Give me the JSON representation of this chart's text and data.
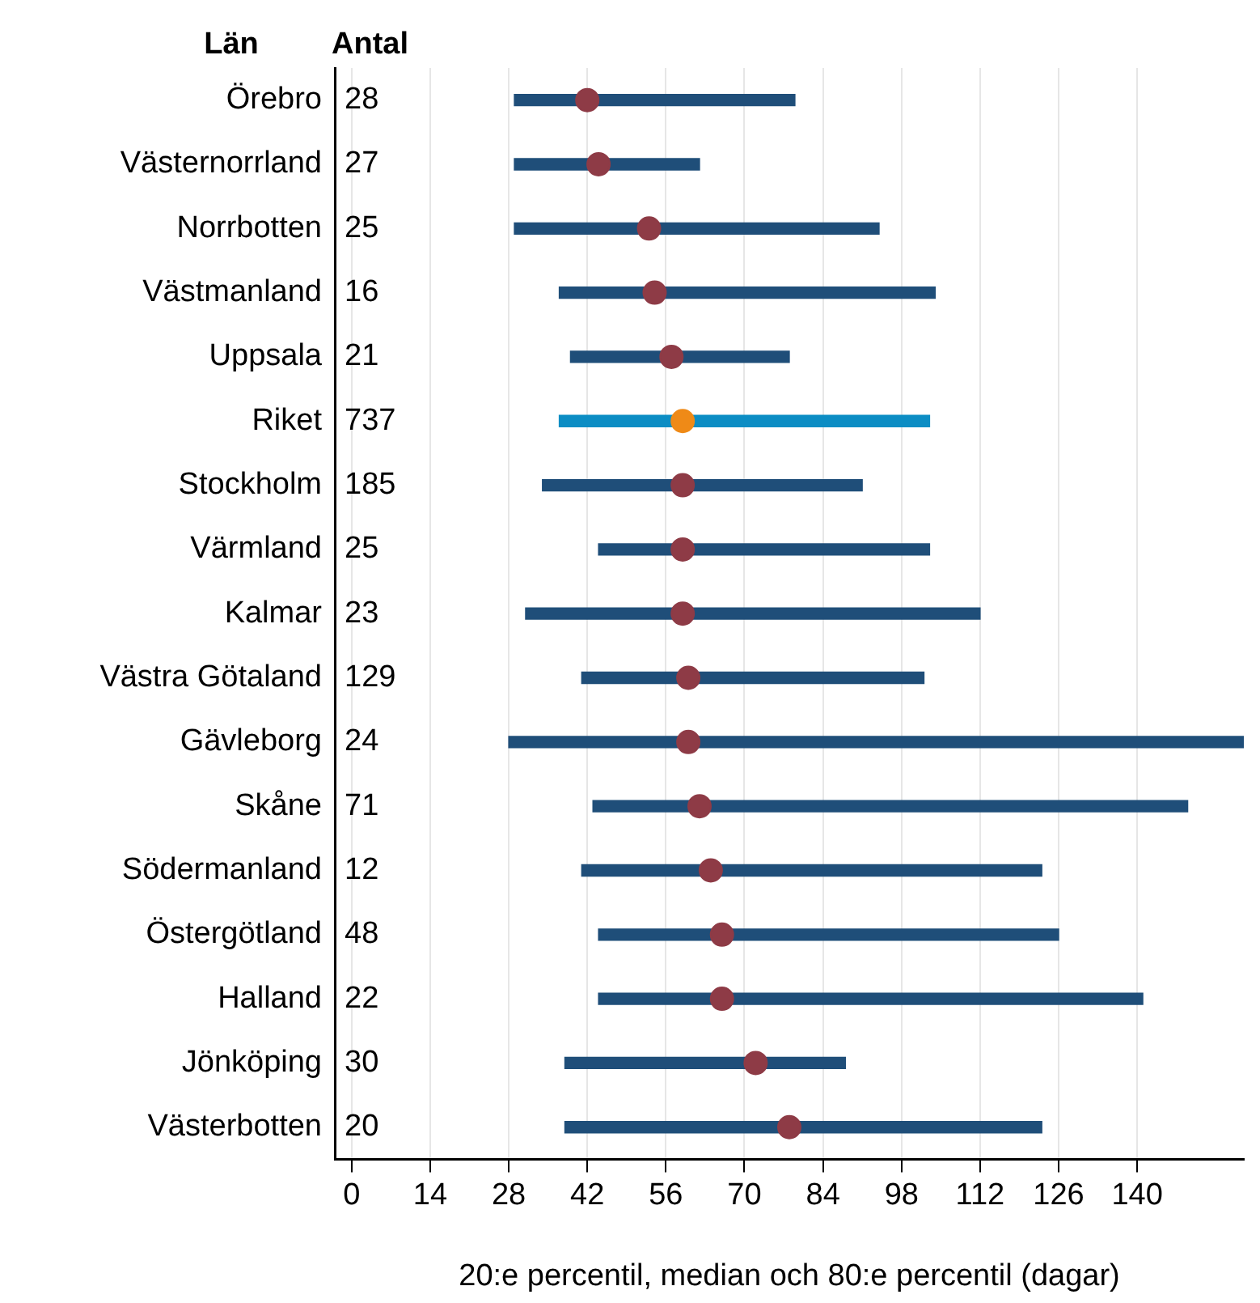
{
  "chart_data": {
    "type": "bar",
    "orientation": "horizontal",
    "ylabel": "Län",
    "xlabel": "20:e percentil, median och 80:e percentil (dagar)",
    "categories": [
      "Örebro",
      "Västernorrland",
      "Norrbotten",
      "Västmanland",
      "Uppsala",
      "Riket",
      "Stockholm",
      "Värmland",
      "Kalmar",
      "Västra Götaland",
      "Gävleborg",
      "Skåne",
      "Södermanland",
      "Östergötland",
      "Halland",
      "Jönköping",
      "Västerbotten"
    ],
    "series": [
      {
        "colors": [
          "#1f4e79",
          "#1f4e79",
          "#1f4e79",
          "#1f4e79",
          "#1f4e79",
          "#0c8dc4",
          "#1f4e79",
          "#1f4e79",
          "#1f4e79",
          "#1f4e79",
          "#1f4e79",
          "#1f4e79",
          "#1f4e79",
          "#1f4e79",
          "#1f4e79",
          "#1f4e79",
          "#1f4e79"
        ],
        "base": [
          29,
          29,
          29,
          37,
          39,
          37,
          34,
          44,
          31,
          41,
          28,
          43,
          41,
          44,
          44,
          38,
          38
        ],
        "values": [
          50,
          33,
          65,
          67,
          39,
          66,
          57,
          59,
          81,
          61,
          131,
          106,
          82,
          82,
          97,
          50,
          85
        ]
      },
      {
        "type": "scatter",
        "marker": "circle",
        "colors": [
          "#8e3b46",
          "#8e3b46",
          "#8e3b46",
          "#8e3b46",
          "#8e3b46",
          "#ef8a17",
          "#8e3b46",
          "#8e3b46",
          "#8e3b46",
          "#8e3b46",
          "#8e3b46",
          "#8e3b46",
          "#8e3b46",
          "#8e3b46",
          "#8e3b46",
          "#8e3b46",
          "#8e3b46"
        ],
        "values": [
          42,
          44,
          53,
          54,
          57,
          59,
          59,
          59,
          59,
          60,
          60,
          62,
          64,
          66,
          66,
          72,
          78
        ]
      }
    ],
    "xlim": [
      -3,
      159
    ],
    "xticks": [
      0,
      14,
      28,
      42,
      56,
      70,
      84,
      98,
      112,
      126,
      140
    ],
    "grid": "x",
    "legend": false,
    "annotations": [
      "Antal",
      "28",
      "27",
      "25",
      "16",
      "21",
      "737",
      "185",
      "25",
      "23",
      "129",
      "24",
      "71",
      "12",
      "48",
      "22",
      "30",
      "20"
    ]
  }
}
